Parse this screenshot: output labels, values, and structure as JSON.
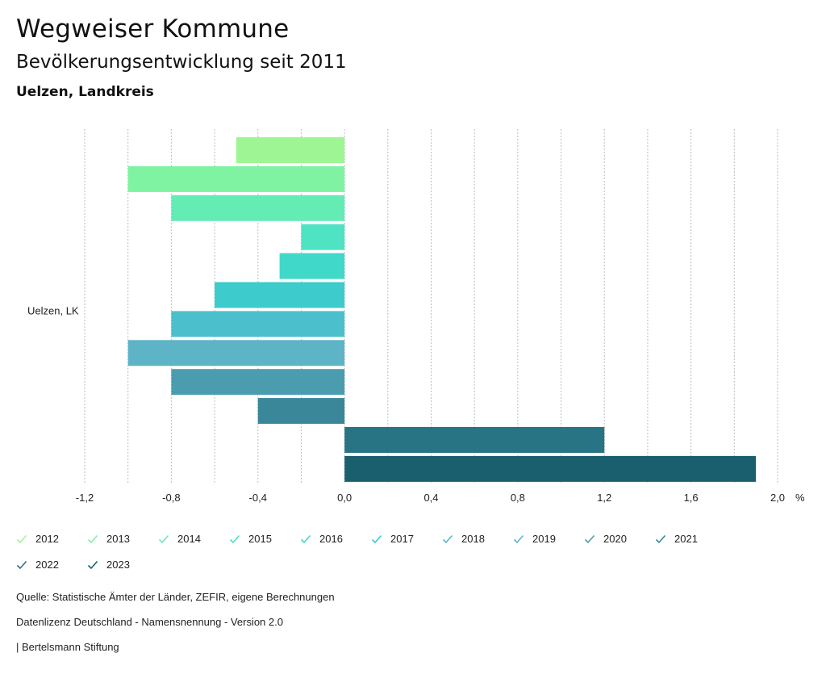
{
  "header": {
    "title": "Wegweiser Kommune",
    "subtitle": "Bevölkerungsentwicklung seit 2011",
    "region": "Uelzen, Landkreis"
  },
  "chart_data": {
    "type": "bar",
    "orientation": "horizontal",
    "categories": [
      "Uelzen, LK"
    ],
    "series": [
      {
        "name": "2012",
        "values": [
          -0.5
        ],
        "color": "#9ef593"
      },
      {
        "name": "2013",
        "values": [
          -1.0
        ],
        "color": "#7ff3a2"
      },
      {
        "name": "2014",
        "values": [
          -0.8
        ],
        "color": "#63ecb3"
      },
      {
        "name": "2015",
        "values": [
          -0.2
        ],
        "color": "#4ee3c2"
      },
      {
        "name": "2016",
        "values": [
          -0.3
        ],
        "color": "#40d8c9"
      },
      {
        "name": "2017",
        "values": [
          -0.6
        ],
        "color": "#3ecbcc"
      },
      {
        "name": "2018",
        "values": [
          -0.8
        ],
        "color": "#4bbfcc"
      },
      {
        "name": "2019",
        "values": [
          -1.0
        ],
        "color": "#5db4c6"
      },
      {
        "name": "2020",
        "values": [
          -0.8
        ],
        "color": "#4c9cb0"
      },
      {
        "name": "2021",
        "values": [
          -0.4
        ],
        "color": "#3a879a"
      },
      {
        "name": "2022",
        "values": [
          1.2
        ],
        "color": "#297484"
      },
      {
        "name": "2023",
        "values": [
          1.9
        ],
        "color": "#1a5f6e"
      }
    ],
    "xlim": [
      -1.2,
      2.0
    ],
    "xticks": [
      "-1,2",
      "-0,8",
      "-0,4",
      "0,0",
      "0,4",
      "0,8",
      "1,2",
      "1,6",
      "2,0"
    ],
    "xtick_values": [
      -1.2,
      -0.8,
      -0.4,
      0.0,
      0.4,
      0.8,
      1.2,
      1.6,
      2.0
    ],
    "grid_values": [
      -1.2,
      -1.0,
      -0.8,
      -0.6,
      -0.4,
      -0.2,
      0.0,
      0.2,
      0.4,
      0.6,
      0.8,
      1.0,
      1.2,
      1.4,
      1.6,
      1.8,
      2.0
    ],
    "unit": "%",
    "legend_position": "bottom"
  },
  "footer": {
    "source": "Quelle: Statistische Ämter der Länder, ZEFIR, eigene Berechnungen",
    "license": "Datenlizenz Deutschland - Namensnennung - Version 2.0",
    "publisher": "| Bertelsmann Stiftung"
  }
}
